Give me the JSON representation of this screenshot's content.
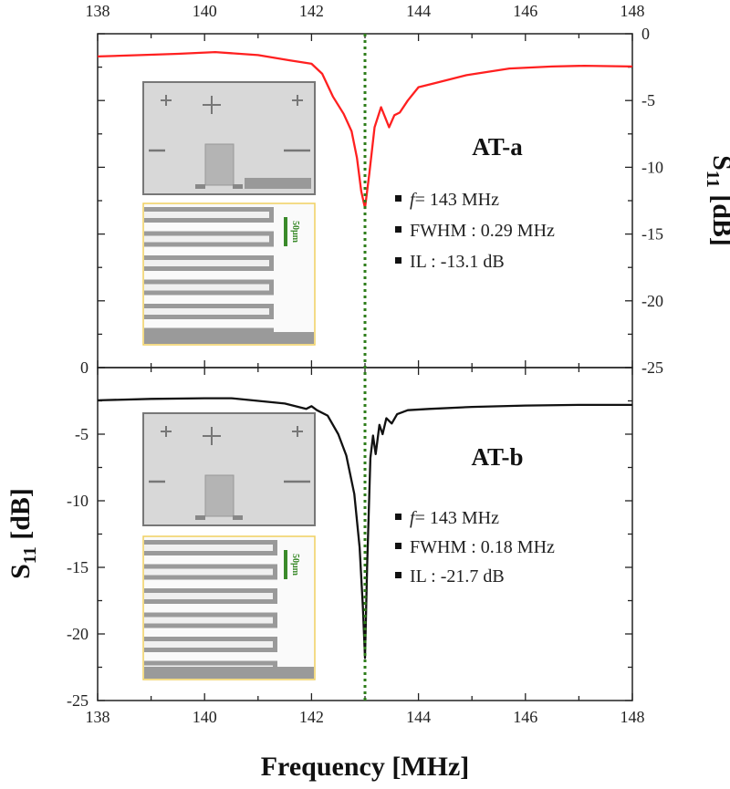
{
  "chart_data": [
    {
      "type": "line",
      "panel": "AT-a",
      "title": "AT-a",
      "xlabel": "Frequency [MHz]",
      "ylabel": "S11 [dB]",
      "ylabel_side": "right",
      "xlim": [
        138,
        148
      ],
      "ylim": [
        -25,
        0
      ],
      "xticks": [
        "138",
        "140",
        "142",
        "144",
        "146",
        "148"
      ],
      "yticks": [
        "0",
        "-5",
        "-10",
        "-15",
        "-20",
        "-25"
      ],
      "color": "#ff2020",
      "x": [
        138,
        138.8,
        139.5,
        140.2,
        141,
        141.6,
        142,
        142.2,
        142.4,
        142.6,
        142.75,
        142.85,
        142.93,
        143,
        143.08,
        143.18,
        143.3,
        143.38,
        143.45,
        143.55,
        143.65,
        143.8,
        144,
        144.3,
        144.9,
        145.7,
        146.5,
        147.1,
        148
      ],
      "y": [
        -1.7,
        -1.6,
        -1.5,
        -1.37,
        -1.6,
        -2.0,
        -2.25,
        -3.0,
        -4.7,
        -6.0,
        -7.3,
        -9.3,
        -11.8,
        -13.05,
        -10.5,
        -7.0,
        -5.5,
        -6.3,
        -7.0,
        -6.1,
        -5.9,
        -5.0,
        -4.0,
        -3.7,
        -3.1,
        -2.6,
        -2.45,
        -2.4,
        -2.45
      ],
      "annotations": {
        "f": "143 MHz",
        "fwhm": "FWHM : 0.29 MHz",
        "il": "IL : -13.1 dB"
      }
    },
    {
      "type": "line",
      "panel": "AT-b",
      "title": "AT-b",
      "xlabel": "Frequency [MHz]",
      "ylabel": "S11 [dB]",
      "ylabel_side": "left",
      "xlim": [
        138,
        148
      ],
      "ylim": [
        -25,
        0
      ],
      "xticks": [
        "138",
        "140",
        "142",
        "144",
        "146",
        "148"
      ],
      "yticks": [
        "0",
        "-5",
        "-10",
        "-15",
        "-20",
        "-25"
      ],
      "color": "#111111",
      "x": [
        138,
        139,
        140,
        140.5,
        141.5,
        141.9,
        142,
        142.1,
        142.3,
        142.5,
        142.65,
        142.8,
        142.9,
        142.96,
        143,
        143.04,
        143.1,
        143.15,
        143.2,
        143.27,
        143.33,
        143.4,
        143.5,
        143.6,
        143.8,
        144.2,
        145,
        146,
        147,
        148
      ],
      "y": [
        -2.46,
        -2.35,
        -2.3,
        -2.3,
        -2.7,
        -3.1,
        -2.9,
        -3.2,
        -3.6,
        -5.0,
        -6.6,
        -9.5,
        -13.5,
        -18.0,
        -21.8,
        -15.0,
        -6.8,
        -5.1,
        -6.5,
        -4.3,
        -5.0,
        -3.8,
        -4.2,
        -3.5,
        -3.2,
        -3.1,
        -2.95,
        -2.85,
        -2.8,
        -2.8
      ],
      "annotations": {
        "f": "143 MHz",
        "fwhm": "FWHM : 0.18 MHz",
        "il": "IL : -21.7 dB"
      }
    }
  ],
  "marker_line": {
    "x": 143,
    "color": "#2e7d1a"
  },
  "inset": {
    "scale_bar": "50μm",
    "scale_color": "#3a8a2a"
  },
  "labels": {
    "xlabel": "Frequency [MHz]",
    "ylabel_main": "S",
    "ylabel_sub": "11",
    "ylabel_unit": " [dB]",
    "f_symbol": "f",
    "f_eq": "= "
  }
}
